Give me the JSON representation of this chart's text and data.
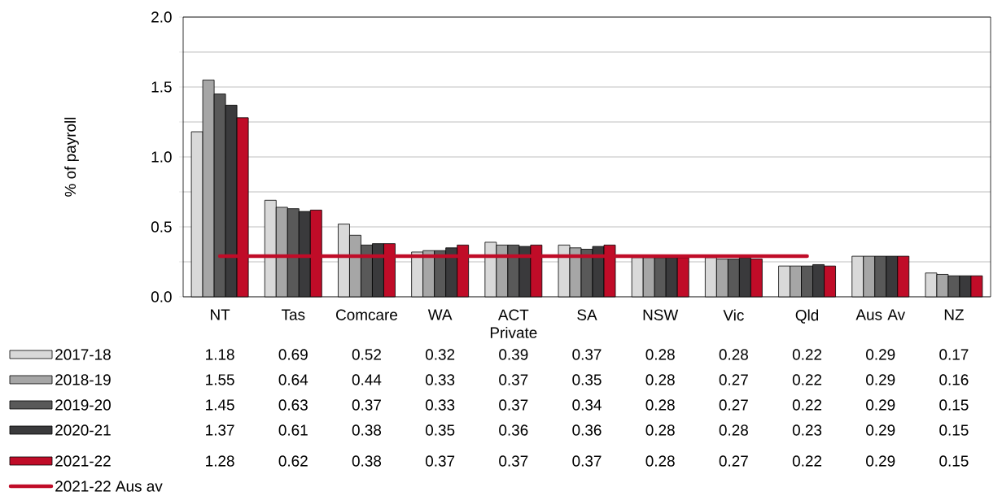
{
  "chart_data": {
    "type": "bar",
    "ylabel": "% of payroll",
    "categories": [
      "NT",
      "Tas",
      "Comcare",
      "WA",
      "ACT Private",
      "SA",
      "NSW",
      "Vic",
      "Qld",
      "Aus Av",
      "NZ"
    ],
    "series": [
      {
        "name": "2017-18",
        "color": "#d9d9d9",
        "values": [
          1.18,
          0.69,
          0.52,
          0.32,
          0.39,
          0.37,
          0.28,
          0.28,
          0.22,
          0.29,
          0.17
        ],
        "value_labels": [
          "1.18",
          "0.69",
          "0.52",
          "0.32",
          "0.39",
          "0.37",
          "0.28",
          "0.28",
          "0.22",
          "0.29",
          "0.17"
        ]
      },
      {
        "name": "2018-19",
        "color": "#a6a6a6",
        "values": [
          1.55,
          0.64,
          0.44,
          0.33,
          0.37,
          0.35,
          0.28,
          0.27,
          0.22,
          0.29,
          0.16
        ],
        "value_labels": [
          "1.55",
          "0.64",
          "0.44",
          "0.33",
          "0.37",
          "0.35",
          "0.28",
          "0.27",
          "0.22",
          "0.29",
          "0.16"
        ]
      },
      {
        "name": "2019-20",
        "color": "#595959",
        "values": [
          1.45,
          0.63,
          0.37,
          0.33,
          0.37,
          0.34,
          0.28,
          0.27,
          0.22,
          0.29,
          0.15
        ],
        "value_labels": [
          "1.45",
          "0.63",
          "0.37",
          "0.33",
          "0.37",
          "0.34",
          "0.28",
          "0.27",
          "0.22",
          "0.29",
          "0.15"
        ]
      },
      {
        "name": "2020-21",
        "color": "#3a3a3c",
        "values": [
          1.37,
          0.61,
          0.38,
          0.35,
          0.36,
          0.36,
          0.28,
          0.28,
          0.23,
          0.29,
          0.15
        ],
        "value_labels": [
          "1.37",
          "0.61",
          "0.38",
          "0.35",
          "0.36",
          "0.36",
          "0.28",
          "0.28",
          "0.23",
          "0.29",
          "0.15"
        ]
      },
      {
        "name": "2021-22",
        "color": "#c00c28",
        "values": [
          1.28,
          0.62,
          0.38,
          0.37,
          0.37,
          0.37,
          0.28,
          0.27,
          0.22,
          0.29,
          0.15
        ],
        "value_labels": [
          "1.28",
          "0.62",
          "0.38",
          "0.37",
          "0.37",
          "0.37",
          "0.28",
          "0.27",
          "0.22",
          "0.29",
          "0.15"
        ]
      },
      {
        "name": "2021-22 Aus av",
        "type": "line",
        "color": "#c00c28",
        "values": [
          0.29,
          0.29,
          0.29,
          0.29,
          0.29,
          0.29,
          0.29,
          0.29,
          0.29,
          null,
          null
        ]
      }
    ],
    "ylim": [
      0,
      2
    ],
    "yticks": [
      {
        "value": 0,
        "label": "0.0"
      },
      {
        "value": 0.25,
        "label": null
      },
      {
        "value": 0.5,
        "label": "0.5"
      },
      {
        "value": 0.75,
        "label": null
      },
      {
        "value": 1,
        "label": "1.0"
      },
      {
        "value": 1.25,
        "label": null
      },
      {
        "value": 1.5,
        "label": "1.5"
      },
      {
        "value": 1.75,
        "label": null
      },
      {
        "value": 2,
        "label": "2.0"
      }
    ],
    "grid": "y",
    "legend": "bottom left",
    "marker": "none"
  }
}
